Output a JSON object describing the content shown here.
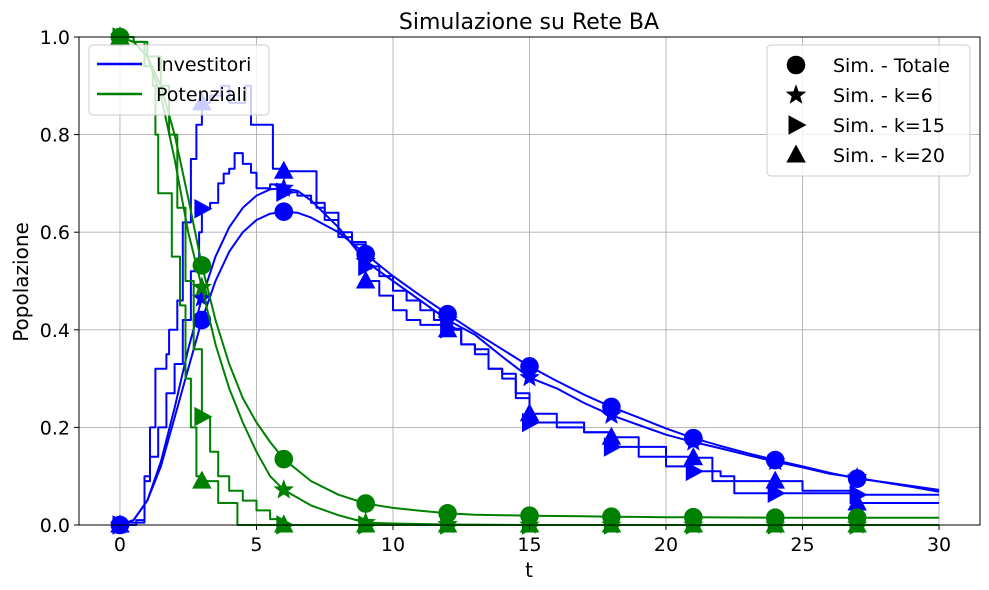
{
  "chart_data": {
    "type": "line",
    "title": "Simulazione su Rete BA",
    "xlabel": "t",
    "ylabel": "Popolazione",
    "xlim": [
      -1.5,
      31.5
    ],
    "ylim": [
      0,
      1.0
    ],
    "xticks": [
      0,
      5,
      10,
      15,
      20,
      25,
      30
    ],
    "yticks": [
      0.0,
      0.2,
      0.4,
      0.6,
      0.8,
      1.0
    ],
    "xtick_labels": [
      "0",
      "5",
      "10",
      "15",
      "20",
      "25",
      "30"
    ],
    "ytick_labels": [
      "0.0",
      "0.2",
      "0.4",
      "0.6",
      "0.8",
      "1.0"
    ],
    "grid": true,
    "colors": {
      "investitori": "#0000ff",
      "potenziali": "#008000"
    },
    "legend_lines": {
      "placement": "top-left",
      "entries": [
        {
          "label": "Investitori",
          "color": "#0000ff"
        },
        {
          "label": "Potenziali",
          "color": "#008000"
        }
      ]
    },
    "legend_markers": {
      "placement": "top-right",
      "entries": [
        {
          "label": "Sim. - Totale",
          "marker": "circle"
        },
        {
          "label": "Sim. - k=6",
          "marker": "star"
        },
        {
          "label": "Sim. - k=15",
          "marker": "triangle-right"
        },
        {
          "label": "Sim. - k=20",
          "marker": "triangle-up"
        }
      ]
    },
    "marker_x": [
      0,
      3,
      6,
      9,
      12,
      15,
      18,
      21,
      24,
      27
    ],
    "series": [
      {
        "group": "Investitori",
        "marker": "circle",
        "color": "#0000ff",
        "step": false,
        "points": [
          [
            0,
            0
          ],
          [
            0.5,
            0.01
          ],
          [
            1,
            0.05
          ],
          [
            1.5,
            0.12
          ],
          [
            2,
            0.22
          ],
          [
            2.5,
            0.32
          ],
          [
            3,
            0.42
          ],
          [
            3.5,
            0.5
          ],
          [
            4,
            0.56
          ],
          [
            4.5,
            0.6
          ],
          [
            5,
            0.625
          ],
          [
            5.5,
            0.638
          ],
          [
            6,
            0.642
          ],
          [
            6.5,
            0.64
          ],
          [
            7,
            0.63
          ],
          [
            8,
            0.6
          ],
          [
            9,
            0.555
          ],
          [
            10,
            0.51
          ],
          [
            11,
            0.47
          ],
          [
            12,
            0.432
          ],
          [
            13,
            0.395
          ],
          [
            14,
            0.36
          ],
          [
            15,
            0.325
          ],
          [
            16,
            0.295
          ],
          [
            17,
            0.267
          ],
          [
            18,
            0.242
          ],
          [
            19,
            0.22
          ],
          [
            20,
            0.198
          ],
          [
            21,
            0.178
          ],
          [
            22,
            0.162
          ],
          [
            23,
            0.147
          ],
          [
            24,
            0.133
          ],
          [
            25,
            0.12
          ],
          [
            26,
            0.107
          ],
          [
            27,
            0.095
          ],
          [
            28,
            0.088
          ],
          [
            29,
            0.08
          ],
          [
            30,
            0.072
          ]
        ]
      },
      {
        "group": "Investitori",
        "marker": "star",
        "color": "#0000ff",
        "step": false,
        "points": [
          [
            0,
            0
          ],
          [
            0.5,
            0.01
          ],
          [
            1,
            0.05
          ],
          [
            1.5,
            0.13
          ],
          [
            2,
            0.24
          ],
          [
            2.5,
            0.36
          ],
          [
            3,
            0.465
          ],
          [
            3.5,
            0.55
          ],
          [
            4,
            0.61
          ],
          [
            4.5,
            0.65
          ],
          [
            5,
            0.675
          ],
          [
            5.5,
            0.688
          ],
          [
            6,
            0.69
          ],
          [
            6.5,
            0.685
          ],
          [
            7,
            0.665
          ],
          [
            8,
            0.61
          ],
          [
            9,
            0.54
          ],
          [
            10,
            0.5
          ],
          [
            11,
            0.46
          ],
          [
            12,
            0.42
          ],
          [
            13,
            0.39
          ],
          [
            14,
            0.345
          ],
          [
            15,
            0.302
          ],
          [
            16,
            0.28
          ],
          [
            17,
            0.25
          ],
          [
            18,
            0.225
          ],
          [
            19,
            0.205
          ],
          [
            20,
            0.185
          ],
          [
            21,
            0.17
          ],
          [
            22,
            0.157
          ],
          [
            23,
            0.143
          ],
          [
            24,
            0.13
          ],
          [
            25,
            0.118
          ],
          [
            26,
            0.105
          ],
          [
            27,
            0.097
          ],
          [
            28,
            0.087
          ],
          [
            29,
            0.078
          ],
          [
            30,
            0.068
          ]
        ]
      },
      {
        "group": "Investitori",
        "marker": "triangle-right",
        "color": "#0000ff",
        "step": true,
        "points": [
          [
            0,
            0
          ],
          [
            0.6,
            0.01
          ],
          [
            0.9,
            0.09
          ],
          [
            1.1,
            0.14
          ],
          [
            1.4,
            0.2
          ],
          [
            1.7,
            0.27
          ],
          [
            2,
            0.33
          ],
          [
            2.3,
            0.42
          ],
          [
            2.6,
            0.52
          ],
          [
            2.9,
            0.6
          ],
          [
            3,
            0.648
          ],
          [
            3.3,
            0.66
          ],
          [
            3.6,
            0.7
          ],
          [
            3.8,
            0.72
          ],
          [
            4,
            0.73
          ],
          [
            4.2,
            0.762
          ],
          [
            4.5,
            0.74
          ],
          [
            4.8,
            0.722
          ],
          [
            5,
            0.69
          ],
          [
            5.5,
            0.698
          ],
          [
            6,
            0.682
          ],
          [
            6.5,
            0.675
          ],
          [
            7,
            0.66
          ],
          [
            7.5,
            0.64
          ],
          [
            8,
            0.6
          ],
          [
            8.5,
            0.575
          ],
          [
            9,
            0.53
          ],
          [
            9.5,
            0.51
          ],
          [
            10,
            0.48
          ],
          [
            10.5,
            0.46
          ],
          [
            11,
            0.44
          ],
          [
            11.5,
            0.42
          ],
          [
            12,
            0.402
          ],
          [
            12.5,
            0.37
          ],
          [
            13,
            0.35
          ],
          [
            13.5,
            0.32
          ],
          [
            14,
            0.3
          ],
          [
            14.5,
            0.26
          ],
          [
            15,
            0.21
          ],
          [
            16,
            0.2
          ],
          [
            17,
            0.19
          ],
          [
            18,
            0.16
          ],
          [
            19,
            0.14
          ],
          [
            20,
            0.12
          ],
          [
            21,
            0.11
          ],
          [
            22,
            0.1
          ],
          [
            22.5,
            0.065
          ],
          [
            24,
            0.065
          ],
          [
            26,
            0.065
          ],
          [
            27,
            0.062
          ],
          [
            28,
            0.062
          ],
          [
            30,
            0.062
          ]
        ]
      },
      {
        "group": "Investitori",
        "marker": "triangle-up",
        "color": "#0000ff",
        "step": true,
        "points": [
          [
            0,
            0
          ],
          [
            0.3,
            0.005
          ],
          [
            0.9,
            0.1
          ],
          [
            1.1,
            0.2
          ],
          [
            1.3,
            0.32
          ],
          [
            1.7,
            0.35
          ],
          [
            1.8,
            0.4
          ],
          [
            2.1,
            0.46
          ],
          [
            2.3,
            0.62
          ],
          [
            2.6,
            0.75
          ],
          [
            2.8,
            0.82
          ],
          [
            3,
            0.865
          ],
          [
            3.3,
            0.88
          ],
          [
            3.7,
            0.9
          ],
          [
            4,
            0.865
          ],
          [
            4.6,
            0.9
          ],
          [
            4.8,
            0.82
          ],
          [
            5.5,
            0.82
          ],
          [
            5.6,
            0.73
          ],
          [
            6,
            0.725
          ],
          [
            7,
            0.725
          ],
          [
            7.2,
            0.65
          ],
          [
            7.5,
            0.625
          ],
          [
            8,
            0.59
          ],
          [
            8.5,
            0.58
          ],
          [
            9,
            0.5
          ],
          [
            9.5,
            0.47
          ],
          [
            10,
            0.44
          ],
          [
            10.5,
            0.42
          ],
          [
            11,
            0.41
          ],
          [
            12,
            0.4
          ],
          [
            12.5,
            0.37
          ],
          [
            13,
            0.36
          ],
          [
            13.5,
            0.32
          ],
          [
            14,
            0.31
          ],
          [
            14.5,
            0.27
          ],
          [
            15,
            0.228
          ],
          [
            16,
            0.21
          ],
          [
            17,
            0.19
          ],
          [
            18,
            0.18
          ],
          [
            19,
            0.16
          ],
          [
            20,
            0.14
          ],
          [
            21,
            0.138
          ],
          [
            21.7,
            0.09
          ],
          [
            22,
            0.09
          ],
          [
            24,
            0.09
          ],
          [
            25,
            0.07
          ],
          [
            26,
            0.07
          ],
          [
            27,
            0.045
          ],
          [
            28,
            0.045
          ],
          [
            30,
            0.045
          ]
        ]
      },
      {
        "group": "Potenziali",
        "marker": "circle",
        "color": "#008000",
        "step": false,
        "points": [
          [
            0,
            1.0
          ],
          [
            0.5,
            0.99
          ],
          [
            1,
            0.96
          ],
          [
            1.5,
            0.9
          ],
          [
            2,
            0.8
          ],
          [
            2.5,
            0.67
          ],
          [
            3,
            0.532
          ],
          [
            3.5,
            0.42
          ],
          [
            4,
            0.33
          ],
          [
            4.5,
            0.26
          ],
          [
            5,
            0.21
          ],
          [
            5.5,
            0.17
          ],
          [
            6,
            0.135
          ],
          [
            7,
            0.09
          ],
          [
            8,
            0.062
          ],
          [
            9,
            0.044
          ],
          [
            10,
            0.035
          ],
          [
            11,
            0.029
          ],
          [
            12,
            0.024
          ],
          [
            13,
            0.021
          ],
          [
            14,
            0.02
          ],
          [
            15,
            0.019
          ],
          [
            17,
            0.018
          ],
          [
            18,
            0.017
          ],
          [
            20,
            0.016
          ],
          [
            21,
            0.016
          ],
          [
            24,
            0.015
          ],
          [
            27,
            0.015
          ],
          [
            30,
            0.015
          ]
        ]
      },
      {
        "group": "Potenziali",
        "marker": "star",
        "color": "#008000",
        "step": false,
        "points": [
          [
            0,
            1.0
          ],
          [
            0.5,
            0.99
          ],
          [
            1,
            0.96
          ],
          [
            1.5,
            0.88
          ],
          [
            2,
            0.75
          ],
          [
            2.5,
            0.6
          ],
          [
            3,
            0.487
          ],
          [
            3.5,
            0.37
          ],
          [
            4,
            0.28
          ],
          [
            4.5,
            0.21
          ],
          [
            5,
            0.15
          ],
          [
            5.5,
            0.1
          ],
          [
            6,
            0.072
          ],
          [
            7,
            0.04
          ],
          [
            8,
            0.02
          ],
          [
            9,
            0.005
          ],
          [
            10,
            0.003
          ],
          [
            12,
            0.001
          ],
          [
            15,
            0.0
          ],
          [
            18,
            0.0
          ],
          [
            21,
            0.0
          ],
          [
            24,
            0.0
          ],
          [
            27,
            0.0
          ],
          [
            30,
            0.0
          ]
        ]
      },
      {
        "group": "Potenziali",
        "marker": "triangle-right",
        "color": "#008000",
        "step": true,
        "points": [
          [
            0,
            1.0
          ],
          [
            0.5,
            0.99
          ],
          [
            1,
            0.96
          ],
          [
            1.5,
            0.9
          ],
          [
            1.8,
            0.8
          ],
          [
            2.1,
            0.65
          ],
          [
            2.4,
            0.5
          ],
          [
            2.7,
            0.36
          ],
          [
            3,
            0.222
          ],
          [
            3.3,
            0.15
          ],
          [
            3.6,
            0.1
          ],
          [
            4,
            0.07
          ],
          [
            4.5,
            0.05
          ],
          [
            5,
            0.03
          ],
          [
            5.5,
            0.012
          ],
          [
            6,
            0.0
          ],
          [
            9,
            0.0
          ],
          [
            12,
            0.0
          ],
          [
            15,
            0.0
          ],
          [
            18,
            0.0
          ],
          [
            21,
            0.0
          ],
          [
            24,
            0.0
          ],
          [
            27,
            0.0
          ],
          [
            30,
            0.0
          ]
        ]
      },
      {
        "group": "Potenziali",
        "marker": "triangle-up",
        "color": "#008000",
        "step": true,
        "points": [
          [
            0,
            1.0
          ],
          [
            0.5,
            0.99
          ],
          [
            0.9,
            0.94
          ],
          [
            1.2,
            0.9
          ],
          [
            1.3,
            0.8
          ],
          [
            1.4,
            0.68
          ],
          [
            1.8,
            0.68
          ],
          [
            1.9,
            0.55
          ],
          [
            2.2,
            0.45
          ],
          [
            2.4,
            0.3
          ],
          [
            2.6,
            0.2
          ],
          [
            2.8,
            0.1
          ],
          [
            3,
            0.09
          ],
          [
            3.5,
            0.09
          ],
          [
            3.6,
            0.045
          ],
          [
            4.2,
            0.045
          ],
          [
            4.3,
            0.0
          ],
          [
            6,
            0.0
          ],
          [
            9,
            0.0
          ],
          [
            12,
            0.0
          ],
          [
            15,
            0.0
          ],
          [
            18,
            0.0
          ],
          [
            21,
            0.0
          ],
          [
            24,
            0.0
          ],
          [
            27,
            0.0
          ]
        ]
      }
    ]
  }
}
